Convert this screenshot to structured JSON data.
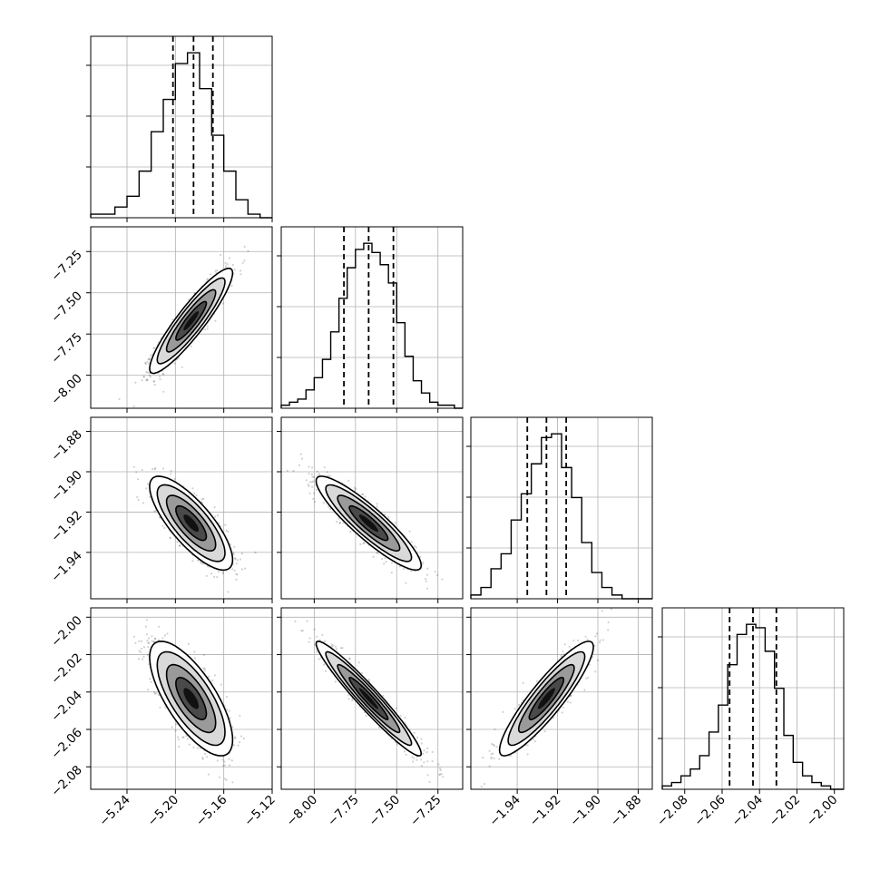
{
  "chart_data": {
    "type": "corner",
    "description_note": "",
    "grid": true,
    "parameters": [
      {
        "index": 0,
        "range": [
          -5.27,
          -5.12
        ],
        "ticks": [
          -5.24,
          -5.2,
          -5.16,
          -5.12
        ],
        "tick_labels": [
          "−5.24",
          "−5.20",
          "−5.16",
          "−5.12"
        ],
        "quantiles": [
          -5.202,
          -5.185,
          -5.169
        ],
        "histogram_bins": [
          -5.265,
          -5.255,
          -5.245,
          -5.235,
          -5.225,
          -5.215,
          -5.205,
          -5.195,
          -5.185,
          -5.175,
          -5.165,
          -5.155,
          -5.145,
          -5.135,
          -5.125
        ],
        "histogram_counts": [
          1,
          1,
          3,
          6,
          13,
          24,
          33,
          43,
          46,
          36,
          23,
          13,
          5,
          1,
          0
        ]
      },
      {
        "index": 1,
        "range": [
          -8.2,
          -7.1
        ],
        "ticks": [
          -8.0,
          -7.75,
          -7.5,
          -7.25
        ],
        "tick_labels": [
          "−8.00",
          "−7.75",
          "−7.50",
          "−7.25"
        ],
        "quantiles": [
          -7.82,
          -7.67,
          -7.52
        ],
        "histogram_bins": [
          -8.175,
          -8.125,
          -8.075,
          -8.025,
          -7.975,
          -7.925,
          -7.875,
          -7.825,
          -7.775,
          -7.725,
          -7.675,
          -7.625,
          -7.575,
          -7.525,
          -7.475,
          -7.425,
          -7.375,
          -7.325,
          -7.275,
          -7.225,
          -7.175,
          -7.125
        ],
        "histogram_counts": [
          1,
          2,
          3,
          6,
          10,
          16,
          25,
          36,
          46,
          52,
          54,
          51,
          47,
          41,
          28,
          17,
          9,
          5,
          2,
          1,
          1,
          0
        ]
      },
      {
        "index": 2,
        "range": [
          -1.963,
          -1.873
        ],
        "ticks": [
          -1.94,
          -1.92,
          -1.9,
          -1.88
        ],
        "tick_labels": [
          "−1.94",
          "−1.92",
          "−1.90",
          "−1.88"
        ],
        "quantiles": [
          -1.935,
          -1.9255,
          -1.9157
        ],
        "histogram_bins": [
          -1.9605,
          -1.9555,
          -1.9505,
          -1.9455,
          -1.9405,
          -1.9355,
          -1.9305,
          -1.9255,
          -1.9205,
          -1.9155,
          -1.9105,
          -1.9055,
          -1.9005,
          -1.8955,
          -1.8905,
          -1.8855,
          -1.8805,
          -1.8755
        ],
        "histogram_counts": [
          1,
          3,
          8,
          12,
          21,
          28,
          36,
          43,
          44,
          35,
          27,
          15,
          7,
          3,
          1,
          0,
          0,
          0
        ]
      },
      {
        "index": 3,
        "range": [
          -2.092,
          -1.995
        ],
        "ticks": [
          -2.08,
          -2.06,
          -2.04,
          -2.02,
          -2.0
        ],
        "tick_labels": [
          "−2.08",
          "−2.06",
          "−2.04",
          "−2.02",
          "−2.00"
        ],
        "quantiles": [
          -2.056,
          -2.0435,
          -2.031
        ],
        "histogram_bins": [
          -2.0895,
          -2.0845,
          -2.0795,
          -2.0745,
          -2.0695,
          -2.0645,
          -2.0595,
          -2.0545,
          -2.0495,
          -2.0445,
          -2.0395,
          -2.0345,
          -2.0295,
          -2.0245,
          -2.0195,
          -2.0145,
          -2.0095,
          -2.0045,
          -1.9995
        ],
        "histogram_counts": [
          1,
          2,
          4,
          6,
          10,
          17,
          25,
          37,
          46,
          49,
          48,
          41,
          30,
          16,
          8,
          4,
          2,
          1,
          0
        ]
      }
    ],
    "pairs": [
      {
        "x": 0,
        "y": 1,
        "center": [
          -5.187,
          -7.67
        ],
        "sd": [
          0.014,
          0.13
        ],
        "corr": 0.91
      },
      {
        "x": 0,
        "y": 2,
        "center": [
          -5.187,
          -1.9255
        ],
        "sd": [
          0.014,
          0.0095
        ],
        "corr": -0.78
      },
      {
        "x": 1,
        "y": 2,
        "center": [
          -7.67,
          -1.9255
        ],
        "sd": [
          0.13,
          0.0095
        ],
        "corr": -0.9
      },
      {
        "x": 0,
        "y": 3,
        "center": [
          -5.187,
          -2.0435
        ],
        "sd": [
          0.014,
          0.0125
        ],
        "corr": -0.72
      },
      {
        "x": 1,
        "y": 3,
        "center": [
          -7.67,
          -2.0435
        ],
        "sd": [
          0.13,
          0.0125
        ],
        "corr": -0.96
      },
      {
        "x": 2,
        "y": 3,
        "center": [
          -1.9255,
          -2.0435
        ],
        "sd": [
          0.0095,
          0.0125
        ],
        "corr": 0.9
      }
    ]
  }
}
